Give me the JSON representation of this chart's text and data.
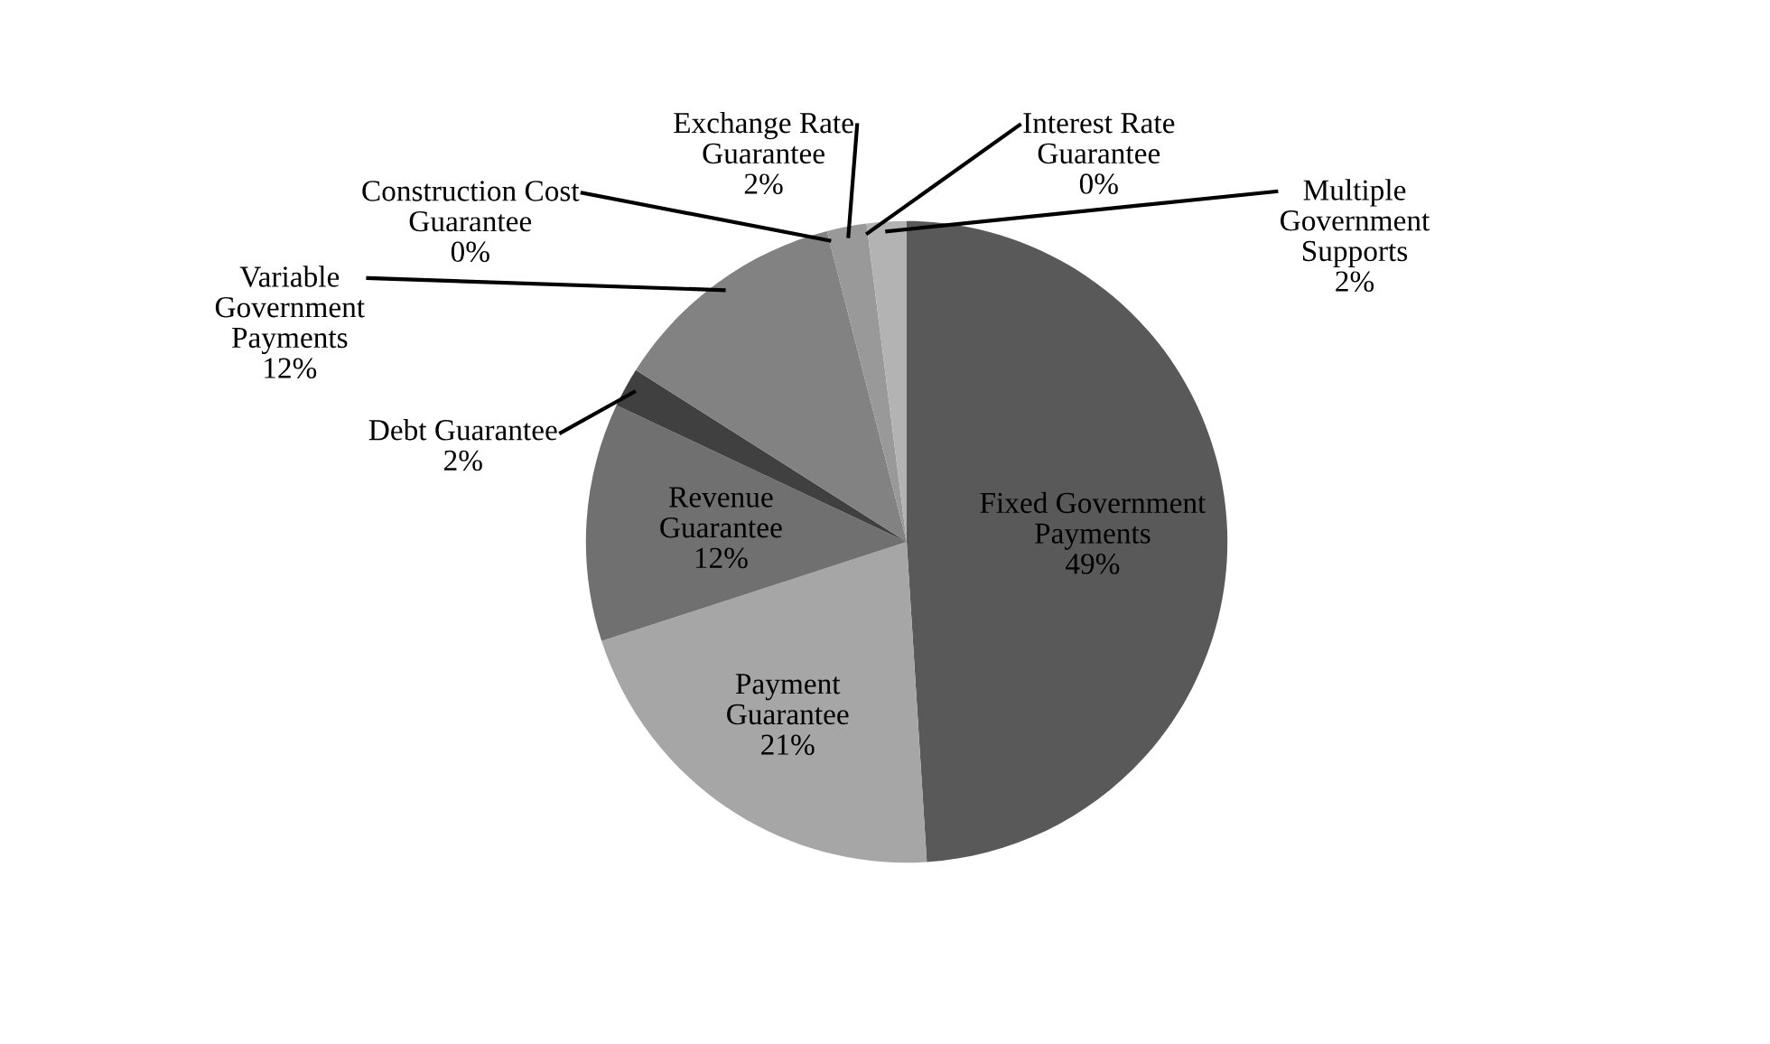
{
  "chart_data": {
    "type": "pie",
    "categories": [
      "Fixed Government\nPayments",
      "Payment\nGuarantee",
      "Revenue\nGuarantee",
      "Debt Guarantee",
      "Variable\nGovernment\nPayments",
      "Construction Cost\nGuarantee",
      "Exchange Rate\nGuarantee",
      "Interest Rate\nGuarantee",
      "Multiple\nGovernment\nSupports"
    ],
    "values": [
      49,
      21,
      12,
      2,
      12,
      0,
      2,
      0,
      2
    ],
    "value_labels": [
      "49%",
      "21%",
      "12%",
      "2%",
      "12%",
      "0%",
      "2%",
      "0%",
      "2%"
    ],
    "colors": [
      "#595959",
      "#a6a6a6",
      "#707070",
      "#404040",
      "#828282",
      "#d9d9d9",
      "#999999",
      "#cccccc",
      "#b3b3b3"
    ],
    "legend": false
  }
}
